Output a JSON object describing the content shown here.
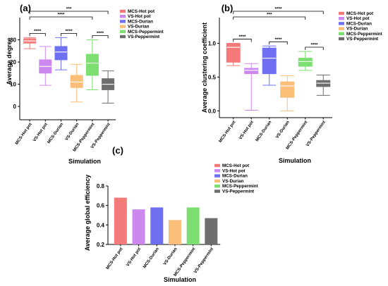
{
  "colors": {
    "MCS-Hot pot": "#f47a7a",
    "VS-Hot pot": "#cc88ee",
    "MCS-Durian": "#6f6ff2",
    "VS-Durian": "#fbbf79",
    "MCS-Peppermint": "#7ddf72",
    "VS-Peppermint": "#6e6e6e"
  },
  "chart_data": [
    {
      "type": "box",
      "panel_label": "(a)",
      "xlabel": "Simulation",
      "ylabel": "Average degree",
      "categories": [
        "MCS-Hot pot",
        "VS-Hot pot",
        "MCS-Durian",
        "VS-Durian",
        "MCS-Peppermint",
        "VS-Peppermint"
      ],
      "ylim": [
        -6,
        40
      ],
      "yticks": [
        0,
        10,
        20,
        30
      ],
      "boxes": [
        {
          "min": 26,
          "q1": 28.5,
          "median": 29.5,
          "q3": 30.5,
          "max": 31
        },
        {
          "min": 9.5,
          "q1": 15,
          "median": 18,
          "q3": 21,
          "max": 27
        },
        {
          "min": 16.5,
          "q1": 21,
          "median": 24.5,
          "q3": 27,
          "max": 31
        },
        {
          "min": 2,
          "q1": 8.5,
          "median": 11,
          "q3": 14,
          "max": 19
        },
        {
          "min": 7.5,
          "q1": 14,
          "median": 19.5,
          "q3": 23.5,
          "max": 30
        },
        {
          "min": 1.5,
          "q1": 7.5,
          "median": 10,
          "q3": 12.5,
          "max": 16
        }
      ],
      "significance": [
        {
          "from": 0,
          "to": 1,
          "label": "****",
          "level": 1
        },
        {
          "from": 2,
          "to": 3,
          "label": "****",
          "level": 1
        },
        {
          "from": 4,
          "to": 5,
          "label": "****",
          "level": 1
        },
        {
          "from": 0,
          "to": 4,
          "label": "****",
          "level": 2
        },
        {
          "from": 0,
          "to": 5,
          "label": "***",
          "level": 3
        }
      ],
      "legend": [
        "MCS-Hot pot",
        "VS-Hot pot",
        "MCS-Durian",
        "VS-Durian",
        "MCS-Peppermint",
        "VS-Peppermint"
      ],
      "legend_position": "right"
    },
    {
      "type": "box",
      "panel_label": "(b)",
      "xlabel": "Simulation",
      "ylabel": "Average clustering coefficient",
      "categories": [
        "MCS-Hot pot",
        "VS-Hot pot",
        "MCS-Durian",
        "VS-Durian",
        "MCS-Peppermint",
        "VS-Peppermint"
      ],
      "ylim": [
        -0.1,
        1.38
      ],
      "yticks": [
        0.0,
        0.5,
        1.0
      ],
      "boxes": [
        {
          "min": 0.67,
          "q1": 0.72,
          "median": 0.94,
          "q3": 0.99,
          "max": 1.0
        },
        {
          "min": 0.01,
          "q1": 0.55,
          "median": 0.6,
          "q3": 0.63,
          "max": 0.7
        },
        {
          "min": 0.38,
          "q1": 0.55,
          "median": 0.78,
          "q3": 0.93,
          "max": 0.96
        },
        {
          "min": 0.0,
          "q1": 0.2,
          "median": 0.37,
          "q3": 0.43,
          "max": 0.52
        },
        {
          "min": 0.6,
          "q1": 0.66,
          "median": 0.73,
          "q3": 0.78,
          "max": 0.88
        },
        {
          "min": 0.23,
          "q1": 0.36,
          "median": 0.41,
          "q3": 0.45,
          "max": 0.53
        }
      ],
      "significance": [
        {
          "from": 0,
          "to": 1,
          "label": "****",
          "level": 1
        },
        {
          "from": 2,
          "to": 3,
          "label": "****",
          "level": 1
        },
        {
          "from": 4,
          "to": 5,
          "label": "****",
          "level": 1
        },
        {
          "from": 0,
          "to": 4,
          "label": "***",
          "level": 2
        },
        {
          "from": 0,
          "to": 5,
          "label": "****",
          "level": 3
        }
      ],
      "legend": [
        "MCS-Hot pot",
        "VS-Hot pot",
        "MCS-Durian",
        "VS-Durian",
        "MCS-Peppermint",
        "VS-Peppermint"
      ],
      "legend_position": "right"
    },
    {
      "type": "bar",
      "panel_label": "(c)",
      "xlabel": "Simulation",
      "ylabel": "Average global efficiency",
      "categories": [
        "MCS-Hot pot",
        "VS-Hot pot",
        "MCS-Durian",
        "VS-Durian",
        "MCS-Peppermint",
        "VS-Peppermint"
      ],
      "values": [
        0.68,
        0.56,
        0.58,
        0.45,
        0.58,
        0.47
      ],
      "ylim": [
        0.2,
        0.8
      ],
      "yticks": [
        0.2,
        0.4,
        0.6,
        0.8
      ],
      "legend": [
        "MCS-Hot pot",
        "VS-Hot pot",
        "MCS-Durian",
        "VS-Durian",
        "MCS-Peppermint",
        "VS-Peppermint"
      ],
      "legend_position": "right"
    }
  ]
}
